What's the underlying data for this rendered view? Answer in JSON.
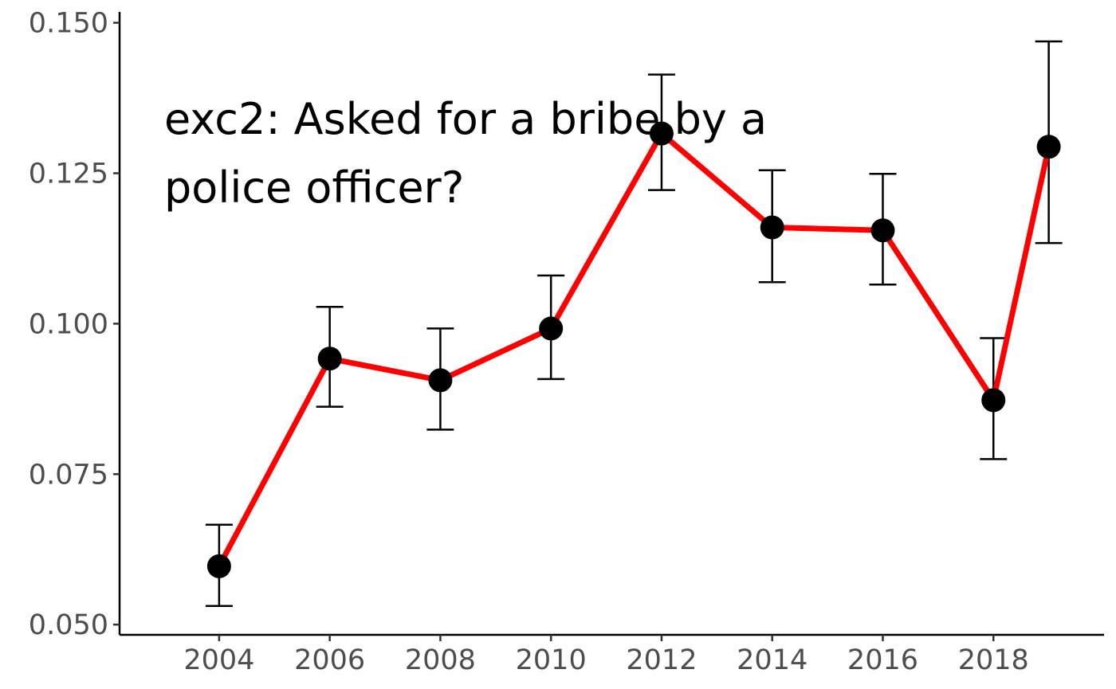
{
  "chart_data": {
    "type": "line",
    "title": "",
    "xlabel": "",
    "ylabel": "",
    "annotation": [
      "exc2: Asked for a bribe by a",
      "police officer?"
    ],
    "x": [
      2004,
      2006,
      2008,
      2010,
      2012,
      2014,
      2016,
      2018,
      2019
    ],
    "y": [
      0.0597,
      0.0942,
      0.0906,
      0.0992,
      0.1316,
      0.116,
      0.1155,
      0.0873,
      0.1294
    ],
    "ci_low": [
      0.0531,
      0.0862,
      0.0824,
      0.0908,
      0.1222,
      0.1069,
      0.1065,
      0.0775,
      0.1134
    ],
    "ci_high": [
      0.0666,
      0.1028,
      0.0992,
      0.108,
      0.1414,
      0.1255,
      0.1249,
      0.0976,
      0.1469
    ],
    "xticks": [
      "2004",
      "2006",
      "2008",
      "2010",
      "2012",
      "2014",
      "2016",
      "2018"
    ],
    "yticks": [
      "0.050",
      "0.075",
      "0.100",
      "0.125",
      "0.150"
    ],
    "xlim": [
      2002.2,
      2020.0
    ],
    "ylim": [
      0.0483,
      0.1518
    ],
    "grid": false,
    "legend": "none",
    "colors": {
      "line": "#ff0000",
      "point": "#000000",
      "errorbar": "#000000",
      "axis": "#000000",
      "tick_text": "#4d4d4d"
    }
  }
}
